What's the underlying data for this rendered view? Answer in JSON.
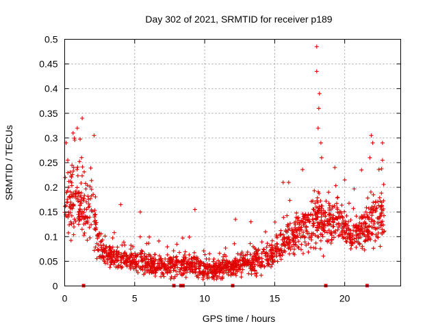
{
  "chart_data": {
    "type": "scatter",
    "title": "Day 302 of 2021, SRMTID for receiver p189",
    "xlabel": "GPS time / hours",
    "ylabel": "SRMTID / TECUs",
    "xlim": [
      0,
      24
    ],
    "ylim": [
      0,
      0.5
    ],
    "x_ticks": [
      0,
      5,
      10,
      15,
      20
    ],
    "y_ticks": [
      0,
      0.05,
      0.1,
      0.15,
      0.2,
      0.25,
      0.3,
      0.35,
      0.4,
      0.45,
      0.5
    ],
    "x_tick_labels": [
      "0",
      "5",
      "10",
      "15",
      "20"
    ],
    "y_tick_labels": [
      "0",
      "0.05",
      "0.1",
      "0.15",
      "0.2",
      "0.25",
      "0.3",
      "0.35",
      "0.4",
      "0.45",
      "0.5"
    ],
    "grid": true,
    "marker": "+",
    "color": "#e00000",
    "x_range_of_data": [
      0,
      22.9
    ],
    "baseline_markers_x": [
      1.35,
      7.8,
      8.3,
      8.45,
      12.0,
      18.65,
      21.6
    ],
    "envelope": {
      "hours": [
        0,
        0.5,
        1.0,
        1.5,
        2.0,
        2.5,
        3,
        4,
        5,
        6,
        7,
        8,
        9,
        10,
        11,
        12,
        13,
        14,
        15,
        15.5,
        16,
        17,
        17.5,
        18,
        18.5,
        19,
        19.5,
        20,
        20.5,
        21,
        21.5,
        22,
        22.5,
        22.9
      ],
      "median": [
        0.17,
        0.18,
        0.17,
        0.16,
        0.14,
        0.08,
        0.065,
        0.055,
        0.05,
        0.045,
        0.04,
        0.04,
        0.045,
        0.035,
        0.035,
        0.04,
        0.045,
        0.055,
        0.065,
        0.09,
        0.1,
        0.11,
        0.12,
        0.14,
        0.12,
        0.13,
        0.14,
        0.12,
        0.1,
        0.11,
        0.12,
        0.13,
        0.14,
        0.15
      ],
      "spread": [
        0.06,
        0.06,
        0.07,
        0.07,
        0.06,
        0.03,
        0.025,
        0.022,
        0.02,
        0.02,
        0.02,
        0.02,
        0.022,
        0.02,
        0.02,
        0.02,
        0.022,
        0.024,
        0.025,
        0.03,
        0.035,
        0.04,
        0.05,
        0.06,
        0.05,
        0.04,
        0.04,
        0.035,
        0.03,
        0.035,
        0.04,
        0.05,
        0.05,
        0.05
      ]
    },
    "peaks": [
      {
        "x": 0.9,
        "y": 0.32
      },
      {
        "x": 1.25,
        "y": 0.34
      },
      {
        "x": 2.1,
        "y": 0.305
      },
      {
        "x": 18.0,
        "y": 0.485
      },
      {
        "x": 18.0,
        "y": 0.435
      },
      {
        "x": 18.2,
        "y": 0.39
      },
      {
        "x": 18.15,
        "y": 0.36
      },
      {
        "x": 18.1,
        "y": 0.32
      },
      {
        "x": 18.3,
        "y": 0.29
      },
      {
        "x": 18.35,
        "y": 0.26
      },
      {
        "x": 16.0,
        "y": 0.21
      },
      {
        "x": 15.6,
        "y": 0.21
      },
      {
        "x": 21.9,
        "y": 0.305
      },
      {
        "x": 22.0,
        "y": 0.29
      },
      {
        "x": 22.7,
        "y": 0.29
      },
      {
        "x": 22.7,
        "y": 0.255
      },
      {
        "x": 21.8,
        "y": 0.26
      },
      {
        "x": 0.6,
        "y": 0.31
      },
      {
        "x": 0.1,
        "y": 0.29
      },
      {
        "x": 12.2,
        "y": 0.135
      },
      {
        "x": 4.0,
        "y": 0.165
      },
      {
        "x": 9.3,
        "y": 0.155
      },
      {
        "x": 5.4,
        "y": 0.15
      },
      {
        "x": 13.3,
        "y": 0.13
      },
      {
        "x": 20.0,
        "y": 0.215
      },
      {
        "x": 21.2,
        "y": 0.235
      },
      {
        "x": 19.3,
        "y": 0.24
      }
    ]
  }
}
